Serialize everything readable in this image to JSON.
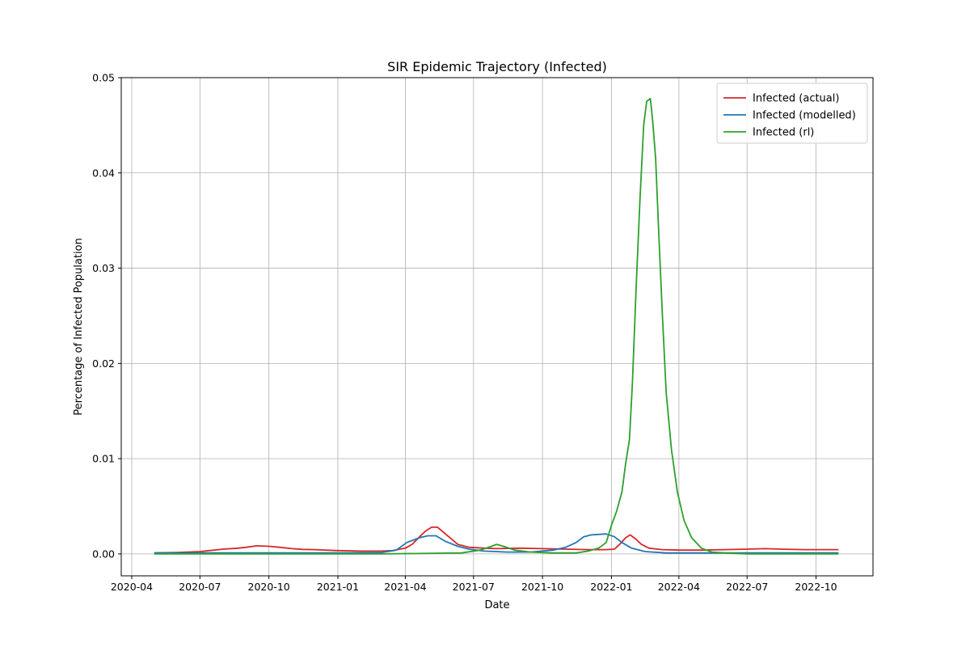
{
  "chart_data": {
    "type": "line",
    "title": "SIR Epidemic Trajectory (Infected)",
    "xlabel": "Date",
    "ylabel": "Percentage of Infected Population",
    "xlim": [
      "2020-03-18",
      "2022-12-16"
    ],
    "ylim": [
      -0.0023,
      0.05
    ],
    "x_ticks": [
      "2020-04-01",
      "2020-07-01",
      "2020-10-01",
      "2021-01-01",
      "2021-04-01",
      "2021-07-01",
      "2021-10-01",
      "2022-01-01",
      "2022-04-01",
      "2022-07-01",
      "2022-10-01"
    ],
    "x_tick_labels": [
      "2020-04",
      "2020-07",
      "2020-10",
      "2021-01",
      "2021-04",
      "2021-07",
      "2021-10",
      "2022-01",
      "2022-04",
      "2022-07",
      "2022-10"
    ],
    "y_ticks": [
      0.0,
      0.01,
      0.02,
      0.03,
      0.04,
      0.05
    ],
    "y_tick_labels": [
      "0.00",
      "0.01",
      "0.02",
      "0.03",
      "0.04",
      "0.05"
    ],
    "grid": true,
    "legend_position": "upper right",
    "series": [
      {
        "name": "Infected (actual)",
        "color": "#d62728",
        "points": [
          [
            "2020-05-01",
            0.0001
          ],
          [
            "2020-06-01",
            0.00015
          ],
          [
            "2020-07-01",
            0.00025
          ],
          [
            "2020-08-01",
            0.0005
          ],
          [
            "2020-08-21",
            0.0006
          ],
          [
            "2020-09-01",
            0.0007
          ],
          [
            "2020-09-15",
            0.00085
          ],
          [
            "2020-10-01",
            0.0008
          ],
          [
            "2020-10-15",
            0.0007
          ],
          [
            "2020-11-01",
            0.00055
          ],
          [
            "2020-11-15",
            0.00048
          ],
          [
            "2020-12-01",
            0.00045
          ],
          [
            "2021-01-01",
            0.00035
          ],
          [
            "2021-02-01",
            0.0003
          ],
          [
            "2021-03-01",
            0.0003
          ],
          [
            "2021-03-15",
            0.00035
          ],
          [
            "2021-04-01",
            0.0006
          ],
          [
            "2021-04-10",
            0.001
          ],
          [
            "2021-04-20",
            0.0018
          ],
          [
            "2021-04-28",
            0.0024
          ],
          [
            "2021-05-06",
            0.0028
          ],
          [
            "2021-05-14",
            0.0028
          ],
          [
            "2021-05-20",
            0.0024
          ],
          [
            "2021-06-01",
            0.0016
          ],
          [
            "2021-06-10",
            0.001
          ],
          [
            "2021-06-25",
            0.0007
          ],
          [
            "2021-07-15",
            0.0006
          ],
          [
            "2021-08-01",
            0.00055
          ],
          [
            "2021-09-01",
            0.0006
          ],
          [
            "2021-10-01",
            0.00055
          ],
          [
            "2021-11-01",
            0.0005
          ],
          [
            "2021-12-01",
            0.00045
          ],
          [
            "2021-12-25",
            0.00045
          ],
          [
            "2022-01-05",
            0.0005
          ],
          [
            "2022-01-12",
            0.001
          ],
          [
            "2022-01-20",
            0.0017
          ],
          [
            "2022-01-26",
            0.002
          ],
          [
            "2022-02-02",
            0.0016
          ],
          [
            "2022-02-10",
            0.001
          ],
          [
            "2022-02-20",
            0.0006
          ],
          [
            "2022-03-10",
            0.00045
          ],
          [
            "2022-04-01",
            0.0004
          ],
          [
            "2022-05-01",
            0.0004
          ],
          [
            "2022-06-01",
            0.00045
          ],
          [
            "2022-07-01",
            0.0005
          ],
          [
            "2022-07-25",
            0.00055
          ],
          [
            "2022-08-15",
            0.0005
          ],
          [
            "2022-09-15",
            0.00045
          ],
          [
            "2022-10-31",
            0.00045
          ]
        ]
      },
      {
        "name": "Infected (modelled)",
        "color": "#1f77b4",
        "points": [
          [
            "2020-05-01",
            0.0001
          ],
          [
            "2020-09-01",
            0.0001
          ],
          [
            "2021-01-01",
            0.0001
          ],
          [
            "2021-03-01",
            0.00015
          ],
          [
            "2021-03-20",
            0.0004
          ],
          [
            "2021-04-03",
            0.0012
          ],
          [
            "2021-04-20",
            0.0017
          ],
          [
            "2021-05-01",
            0.0019
          ],
          [
            "2021-05-12",
            0.0019
          ],
          [
            "2021-05-25",
            0.0013
          ],
          [
            "2021-06-10",
            0.0008
          ],
          [
            "2021-06-25",
            0.0005
          ],
          [
            "2021-07-15",
            0.0003
          ],
          [
            "2021-08-15",
            0.0002
          ],
          [
            "2021-09-15",
            0.0002
          ],
          [
            "2021-10-15",
            0.0004
          ],
          [
            "2021-11-01",
            0.0007
          ],
          [
            "2021-11-15",
            0.0012
          ],
          [
            "2021-11-25",
            0.0018
          ],
          [
            "2021-12-05",
            0.002
          ],
          [
            "2021-12-25",
            0.0021
          ],
          [
            "2022-01-05",
            0.0018
          ],
          [
            "2022-01-15",
            0.0012
          ],
          [
            "2022-01-28",
            0.0006
          ],
          [
            "2022-02-15",
            0.00025
          ],
          [
            "2022-03-15",
            0.0001
          ],
          [
            "2022-06-01",
            0.0001
          ],
          [
            "2022-10-31",
            0.0001
          ]
        ]
      },
      {
        "name": "Infected (rl)",
        "color": "#2ca02c",
        "points": [
          [
            "2020-05-01",
            0.0
          ],
          [
            "2020-10-01",
            0.0
          ],
          [
            "2021-03-01",
            0.0
          ],
          [
            "2021-06-15",
            0.0001
          ],
          [
            "2021-07-10",
            0.0004
          ],
          [
            "2021-07-25",
            0.0008
          ],
          [
            "2021-08-01",
            0.001
          ],
          [
            "2021-08-10",
            0.0008
          ],
          [
            "2021-08-25",
            0.0004
          ],
          [
            "2021-09-15",
            0.0002
          ],
          [
            "2021-10-15",
            0.0001
          ],
          [
            "2021-11-15",
            0.0001
          ],
          [
            "2021-12-01",
            0.0003
          ],
          [
            "2021-12-15",
            0.0006
          ],
          [
            "2021-12-25",
            0.0012
          ],
          [
            "2022-01-01",
            0.003
          ],
          [
            "2022-01-08",
            0.0045
          ],
          [
            "2022-01-15",
            0.0065
          ],
          [
            "2022-01-20",
            0.0095
          ],
          [
            "2022-01-25",
            0.012
          ],
          [
            "2022-01-29",
            0.018
          ],
          [
            "2022-02-03",
            0.028
          ],
          [
            "2022-02-08",
            0.037
          ],
          [
            "2022-02-13",
            0.045
          ],
          [
            "2022-02-17",
            0.0475
          ],
          [
            "2022-02-22",
            0.0478
          ],
          [
            "2022-02-25",
            0.0455
          ],
          [
            "2022-03-01",
            0.0415
          ],
          [
            "2022-03-05",
            0.034
          ],
          [
            "2022-03-10",
            0.025
          ],
          [
            "2022-03-15",
            0.017
          ],
          [
            "2022-03-22",
            0.011
          ],
          [
            "2022-03-30",
            0.0065
          ],
          [
            "2022-04-08",
            0.0035
          ],
          [
            "2022-04-18",
            0.0017
          ],
          [
            "2022-05-01",
            0.0006
          ],
          [
            "2022-05-15",
            0.0002
          ],
          [
            "2022-06-01",
            0.0001
          ],
          [
            "2022-07-01",
            0.0
          ],
          [
            "2022-10-31",
            0.0
          ]
        ]
      }
    ]
  }
}
